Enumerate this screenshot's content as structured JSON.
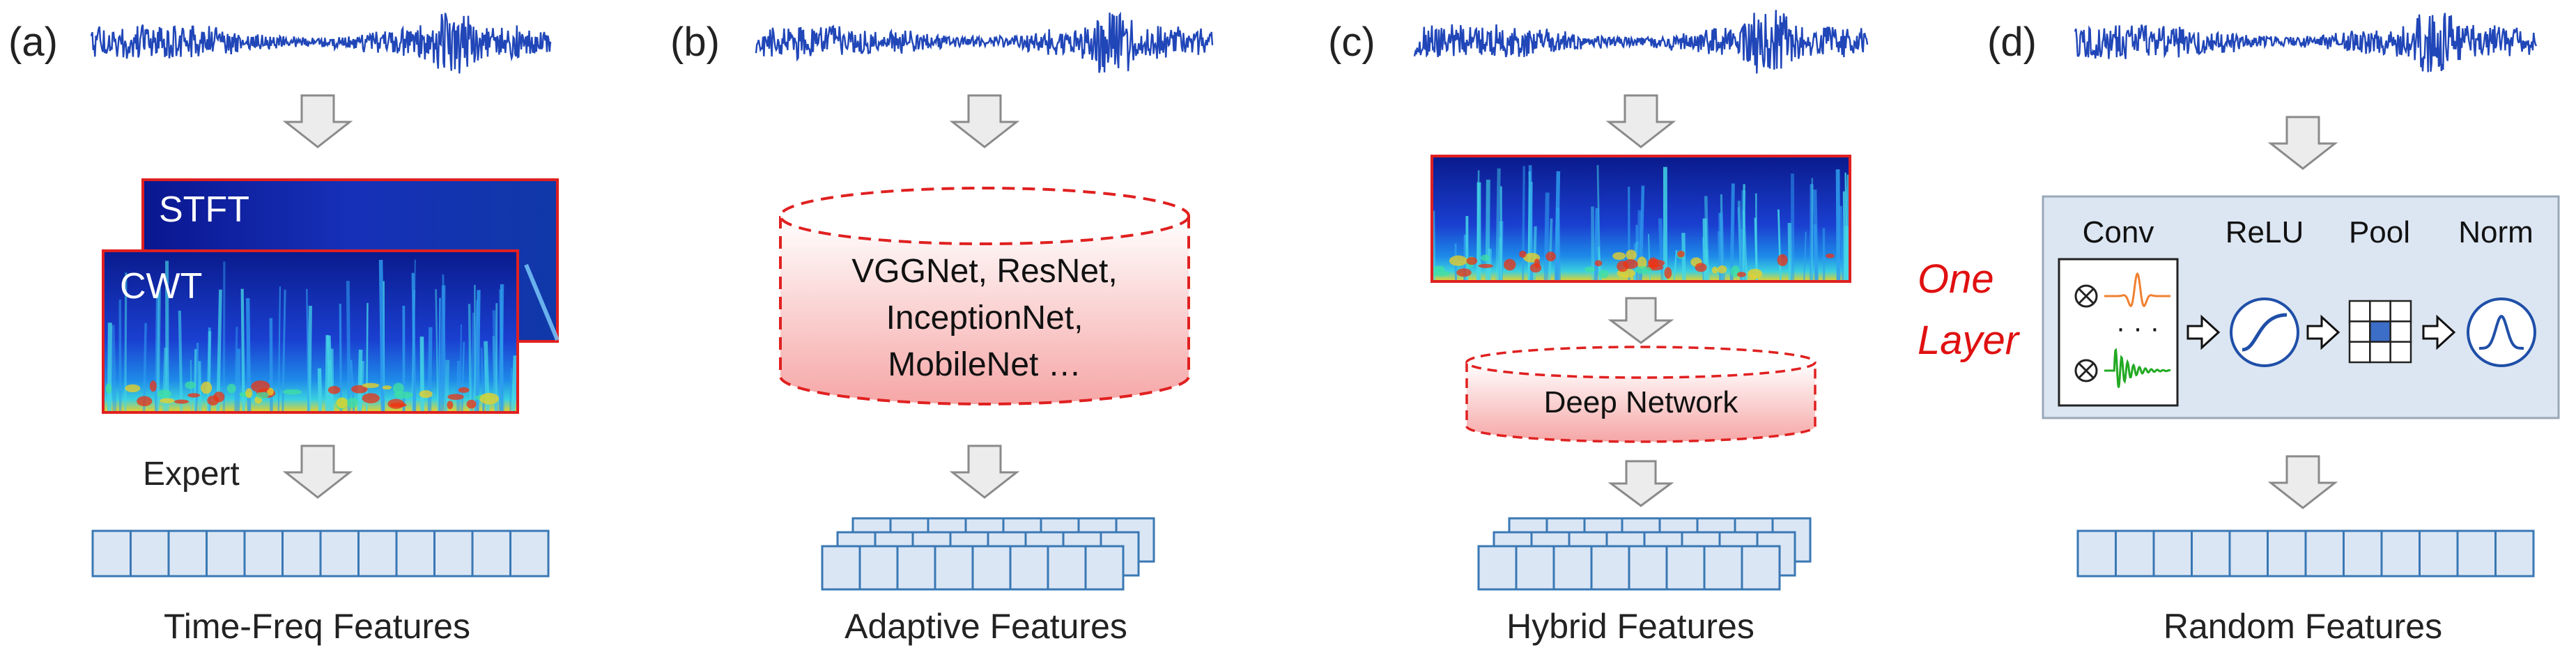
{
  "panels": {
    "a": {
      "label": "(a)",
      "spectrogram_back": "STFT",
      "spectrogram_front": "CWT",
      "method_label": "Expert",
      "output": "Time-Freq Features"
    },
    "b": {
      "label": "(b)",
      "networks": [
        "VGGNet, ResNet,",
        "InceptionNet,",
        "MobileNet …"
      ],
      "output": "Adaptive Features"
    },
    "c": {
      "label": "(c)",
      "network": "Deep Network",
      "output": "Hybrid Features"
    },
    "d": {
      "label": "(d)",
      "side_label": [
        "One",
        "Layer"
      ],
      "stages": [
        "Conv",
        "ReLU",
        "Pool",
        "Norm"
      ],
      "ellipsis": "· · ·",
      "output": "Random Features"
    }
  },
  "colors": {
    "signal": "#2046b8",
    "arrow_fill": "#ececec",
    "arrow_stroke": "#8a8a8a",
    "feature_fill": "#dbe6f5",
    "feature_stroke": "#3a78b4",
    "spectrogram_border": "#e02020",
    "dashed_red": "#e02020",
    "layer_box_fill": "#dce6f2",
    "one_layer_text": "#e01010",
    "relu_circle": "#1f4fa8",
    "kernel_orange": "#f08030",
    "kernel_green": "#22aa22",
    "pool_center": "#3c6ec8"
  }
}
